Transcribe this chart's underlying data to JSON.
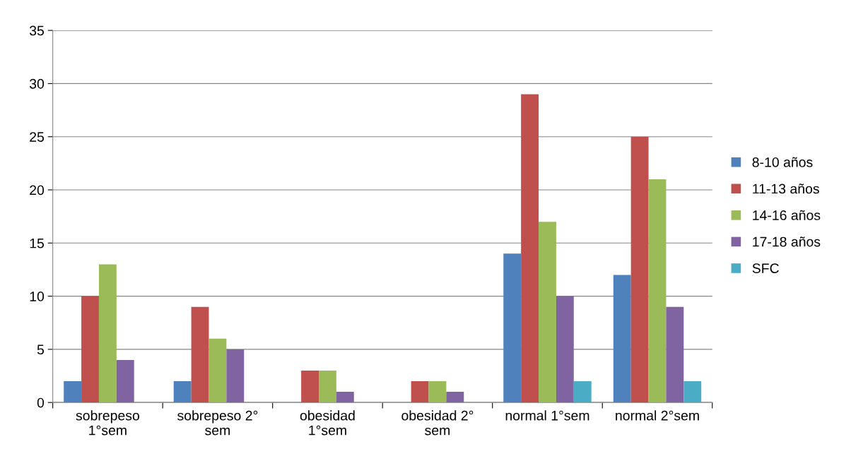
{
  "chart_data": {
    "type": "bar",
    "categories": [
      "sobrepeso\n1°sem",
      "sobrepeso 2°\nsem",
      "obesidad\n1°sem",
      "obesidad 2°\nsem",
      "normal 1°sem",
      "normal 2°sem"
    ],
    "series": [
      {
        "name": "8-10 años",
        "color": "#4f81bd",
        "values": [
          2,
          2,
          null,
          null,
          14,
          12
        ]
      },
      {
        "name": "11-13 años",
        "color": "#c0504d",
        "values": [
          10,
          9,
          3,
          2,
          29,
          25
        ]
      },
      {
        "name": "14-16 años",
        "color": "#9bbb59",
        "values": [
          13,
          6,
          3,
          2,
          17,
          21
        ]
      },
      {
        "name": "17-18 años",
        "color": "#8064a2",
        "values": [
          4,
          5,
          1,
          1,
          10,
          9
        ]
      },
      {
        "name": "SFC",
        "color": "#4bacc6",
        "values": [
          null,
          null,
          null,
          null,
          2,
          2
        ]
      }
    ],
    "ylim": [
      0,
      35
    ],
    "yticks": [
      0,
      5,
      10,
      15,
      20,
      25,
      30,
      35
    ],
    "grid": "y",
    "legend": "right"
  }
}
